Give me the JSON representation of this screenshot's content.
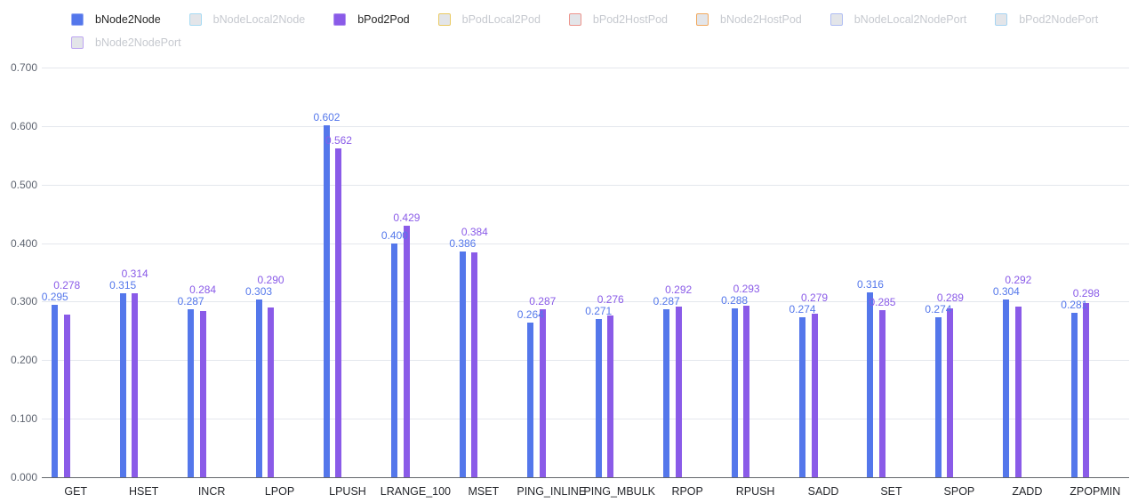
{
  "colors": {
    "background": "#ffffff",
    "grid_line": "#E4E7ED",
    "axis_line": "#63666B",
    "y_label_text": "#5E6470",
    "x_label_text": "#24262B",
    "legend_active_text": "#262626",
    "legend_inactive_text": "#C6C9CF",
    "legend_inactive_fill": "#E3E5E9",
    "series_blue": "#5477EB",
    "series_purple": "#8A5BE8"
  },
  "legend": {
    "items": [
      {
        "label": "bNode2Node",
        "color": "#5477EB",
        "border": "#98ACF4",
        "active": true
      },
      {
        "label": "bNodeLocal2Node",
        "color": "#A8DBF3",
        "border": "#A8DBF3",
        "active": false
      },
      {
        "label": "bPod2Pod",
        "color": "#8A5BE8",
        "border": "#B193F0",
        "active": true
      },
      {
        "label": "bPodLocal2Pod",
        "color": "#EACA62",
        "border": "#EACA62",
        "active": false
      },
      {
        "label": "bPod2HostPod",
        "color": "#ED948C",
        "border": "#ED948C",
        "active": false
      },
      {
        "label": "bNode2HostPod",
        "color": "#F1A95F",
        "border": "#F1A95F",
        "active": false
      },
      {
        "label": "bNodeLocal2NodePort",
        "color": "#AFBDF2",
        "border": "#AFBDF2",
        "active": false
      },
      {
        "label": "bPod2NodePort",
        "color": "#A6D4F2",
        "border": "#A6D4F2",
        "active": false
      },
      {
        "label": "bNode2NodePort",
        "color": "#BDA5F1",
        "border": "#BDA5F1",
        "active": false
      }
    ]
  },
  "chart_data": {
    "type": "bar",
    "title": "",
    "categories": [
      "GET",
      "HSET",
      "INCR",
      "LPOP",
      "LPUSH",
      "LRANGE_100",
      "MSET",
      "PING_INLINE",
      "PING_MBULK",
      "RPOP",
      "RPUSH",
      "SADD",
      "SET",
      "SPOP",
      "ZADD",
      "ZPOPMIN"
    ],
    "series": [
      {
        "name": "bNode2Node",
        "color": "#5477EB",
        "values": [
          0.295,
          0.315,
          0.287,
          0.303,
          0.602,
          0.4,
          0.386,
          0.264,
          0.271,
          0.287,
          0.288,
          0.274,
          0.316,
          0.274,
          0.304,
          0.281
        ]
      },
      {
        "name": "bPod2Pod",
        "color": "#8A5BE8",
        "values": [
          0.278,
          0.314,
          0.284,
          0.29,
          0.562,
          0.429,
          0.384,
          0.287,
          0.276,
          0.292,
          0.293,
          0.279,
          0.285,
          0.289,
          0.292,
          0.298
        ]
      }
    ],
    "ylim": [
      0,
      0.7
    ],
    "ytick_labels": [
      "0.000",
      "0.100",
      "0.200",
      "0.300",
      "0.400",
      "0.500",
      "0.600",
      "0.700"
    ],
    "grid": true,
    "legend_position": "top",
    "value_label_decimals": 3
  }
}
